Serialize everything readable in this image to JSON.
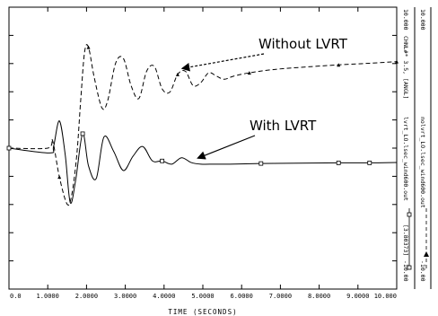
{
  "chart_data": {
    "type": "line",
    "xlabel": "TIME (SECONDS)",
    "xlim": [
      0.0,
      10.0
    ],
    "x_ticks": [
      "0.0",
      "1.0000",
      "2.0000",
      "3.0000",
      "4.0000",
      "5.0000",
      "6.0000",
      "7.0000",
      "8.0000",
      "9.0000",
      "10.000"
    ],
    "series": [
      {
        "name": "Without LVRT",
        "style": "dashed",
        "x": [
          0.0,
          1.0,
          1.12,
          1.3,
          1.5,
          1.62,
          1.75,
          1.85,
          1.95,
          2.05,
          2.2,
          2.4,
          2.55,
          2.75,
          2.95,
          3.15,
          3.35,
          3.55,
          3.75,
          3.95,
          4.15,
          4.35,
          4.55,
          4.75,
          4.95,
          5.15,
          5.35,
          5.55,
          5.8,
          6.2,
          6.8,
          7.5,
          8.5,
          9.3,
          10.0
        ],
        "y": [
          0.0,
          0.0,
          0.25,
          -0.9,
          -1.75,
          -1.45,
          -0.2,
          1.5,
          3.0,
          3.15,
          2.2,
          1.25,
          1.5,
          2.65,
          2.8,
          1.95,
          1.55,
          2.4,
          2.55,
          1.85,
          1.75,
          2.3,
          2.4,
          1.95,
          2.05,
          2.35,
          2.25,
          2.15,
          2.25,
          2.35,
          2.45,
          2.52,
          2.6,
          2.65,
          2.7
        ]
      },
      {
        "name": "With LVRT",
        "style": "solid",
        "x": [
          0.0,
          1.05,
          1.15,
          1.3,
          1.45,
          1.58,
          1.72,
          1.9,
          2.05,
          2.25,
          2.45,
          2.7,
          2.95,
          3.2,
          3.45,
          3.7,
          3.95,
          4.2,
          4.45,
          4.7,
          4.95,
          5.3,
          5.7,
          6.5,
          7.5,
          8.5,
          9.3,
          10.0
        ],
        "y": [
          0.0,
          -0.15,
          0.05,
          0.85,
          -0.2,
          -1.7,
          -1.0,
          0.45,
          -0.55,
          -0.95,
          0.35,
          -0.1,
          -0.7,
          -0.25,
          0.05,
          -0.4,
          -0.4,
          -0.5,
          -0.3,
          -0.45,
          -0.5,
          -0.5,
          -0.5,
          -0.48,
          -0.47,
          -0.46,
          -0.46,
          -0.45
        ]
      }
    ],
    "ylim": [
      -4.4,
      4.4
    ],
    "grid": false,
    "annotations": [
      {
        "text": "Without LVRT",
        "target_series": "Without LVRT",
        "target_x": 4.4,
        "arrow": "dashed"
      },
      {
        "text": "With LVRT",
        "target_series": "With LVRT",
        "target_x": 4.8,
        "arrow": "solid"
      }
    ]
  },
  "side_labels": {
    "col1_top": "10.000",
    "col1_mid_top": "CHNL#* 3.5, [ANGL]",
    "col1_mid": "lvrt_LO.lsec_wind600.out",
    "col1_bottom_value": "[3.80373]",
    "col1_bottom": "-10.00",
    "col2_top": "10.000",
    "col2_mid": "nolvrt_LO.lsec_wind600.out",
    "col2_bottom": "-10.00"
  }
}
